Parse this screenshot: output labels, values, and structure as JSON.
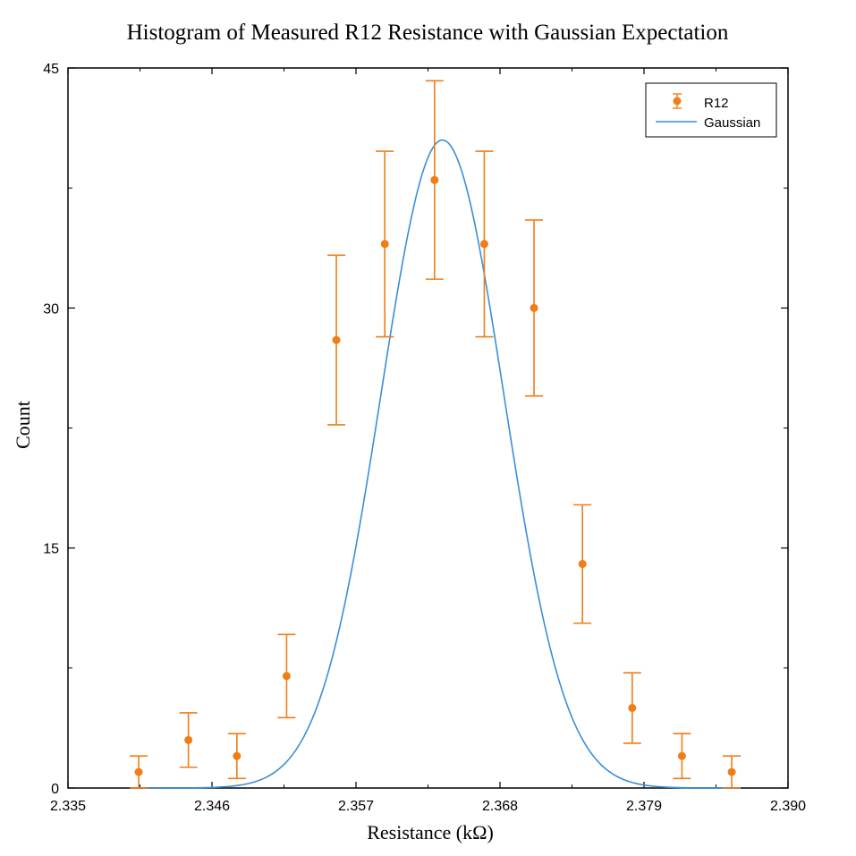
{
  "chart_data": {
    "type": "scatter",
    "title": "Histogram of Measured R12 Resistance with Gaussian Expectation",
    "xlabel": "Resistance (kΩ)",
    "ylabel": "Count",
    "xlim": [
      2.335,
      2.39
    ],
    "ylim": [
      0,
      45
    ],
    "x_ticks": [
      2.335,
      2.346,
      2.357,
      2.368,
      2.379,
      2.39
    ],
    "x_tick_labels": [
      "2.335",
      "2.346",
      "2.357",
      "2.368",
      "2.379",
      "2.390"
    ],
    "y_ticks": [
      0,
      15,
      30,
      45
    ],
    "y_tick_labels": [
      "0",
      "15",
      "30",
      "45"
    ],
    "grid": false,
    "legend_position": "top-right",
    "series": [
      {
        "name": "R12",
        "kind": "errorbar",
        "color": "#f07d17",
        "x": [
          2.3404,
          2.3442,
          2.3479,
          2.3517,
          2.3555,
          2.3592,
          2.363,
          2.3668,
          2.3706,
          2.3743,
          2.3781,
          2.3819,
          2.3857
        ],
        "y": [
          1,
          3,
          2,
          7,
          28,
          34,
          38,
          34,
          30,
          14,
          5,
          2,
          1
        ],
        "err_low": [
          1,
          1.7,
          1.4,
          2.6,
          5.3,
          5.8,
          6.2,
          5.8,
          5.5,
          3.7,
          2.2,
          1.4,
          1
        ],
        "err_high": [
          1,
          1.7,
          1.4,
          2.6,
          5.3,
          5.8,
          6.2,
          5.8,
          5.5,
          3.7,
          2.2,
          1.4,
          1
        ]
      },
      {
        "name": "Gaussian",
        "kind": "line",
        "color": "#3a8fd9",
        "mean": 2.3636,
        "sigma": 0.0047,
        "peak": 40.5,
        "x_range": [
          2.3404,
          2.3857
        ]
      }
    ]
  }
}
